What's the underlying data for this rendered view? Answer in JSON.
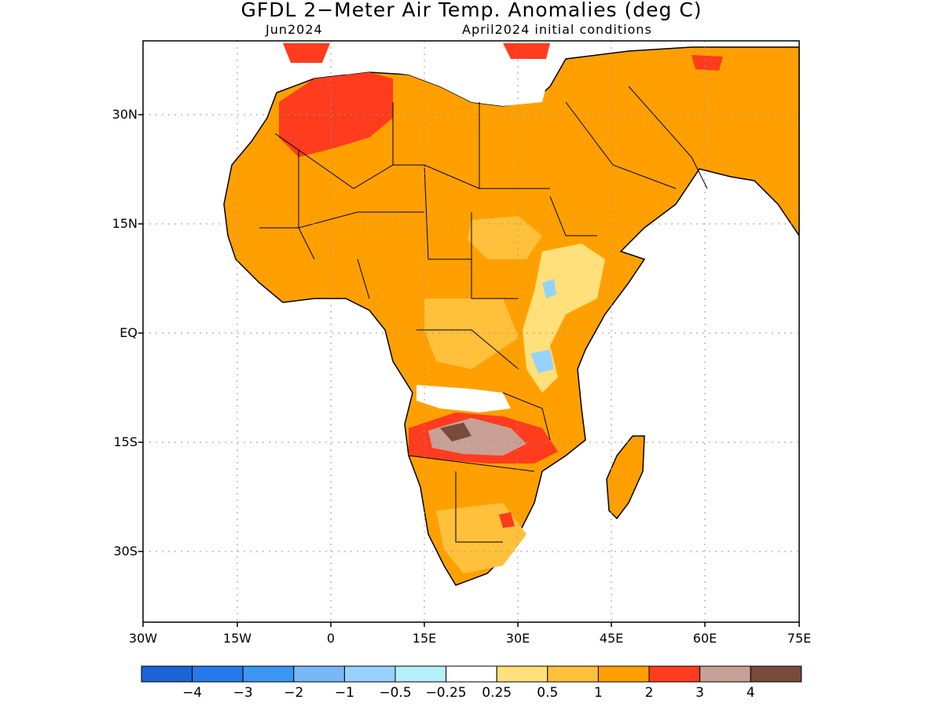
{
  "title": "GFDL 2−Meter Air Temp. Anomalies (deg C)",
  "valid_month": "Jun2024",
  "initial_conditions": "April2024 initial conditions",
  "axes": {
    "y_ticks": [
      "30N",
      "15N",
      "EQ",
      "15S",
      "30S"
    ],
    "x_ticks": [
      "30W",
      "15W",
      "0",
      "15E",
      "30E",
      "45E",
      "60E",
      "75E"
    ],
    "lon_range": [
      -30,
      75
    ],
    "lat_range": [
      -40,
      40
    ],
    "grid": "dotted"
  },
  "colorbar": {
    "labels": [
      "−4",
      "−3",
      "−2",
      "−1",
      "−0.5",
      "−0.25",
      "0.25",
      "0.5",
      "1",
      "2",
      "3",
      "4"
    ],
    "colors": [
      "#1a64d6",
      "#2679ea",
      "#3c96f4",
      "#78b8f6",
      "#97d2fa",
      "#b5f0fa",
      "#ffffff",
      "#ffe07a",
      "#ffc03c",
      "#ffa000",
      "#ff3c1e",
      "#c8a096",
      "#784b3c"
    ]
  }
}
